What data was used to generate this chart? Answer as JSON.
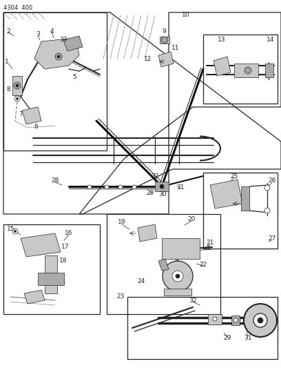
{
  "title_code": "4304  400",
  "bg_color": "#ffffff",
  "line_color": "#222222",
  "figsize": [
    4.08,
    5.33
  ],
  "dpi": 100,
  "lw_thin": 0.5,
  "lw_med": 0.9,
  "lw_thick": 1.5,
  "lw_cable": 2.2,
  "gray_light": "#c8c8c8",
  "gray_med": "#aaaaaa",
  "gray_dark": "#888888"
}
